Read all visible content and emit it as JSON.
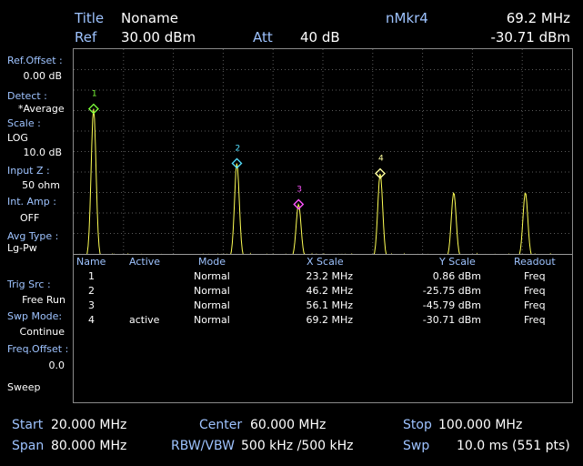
{
  "header": {
    "title_label": "Title",
    "title_value": "Noname",
    "ref_label": "Ref",
    "ref_value": "30.00 dBm",
    "att_label": "Att",
    "att_value": "40 dB",
    "marker_label": "nMkr4",
    "marker_freq": "69.2 MHz",
    "marker_level": "-30.71 dBm"
  },
  "sidebar": {
    "ref_offset_label": "Ref.Offset :",
    "ref_offset_value": "0.00 dB",
    "detect_label": "Detect :",
    "detect_value": "*Average",
    "scale_label": "Scale :",
    "scale_mode": "LOG",
    "scale_value": "10.0 dB",
    "inputz_label": "Input Z :",
    "inputz_value": "50 ohm",
    "intamp_label": "Int. Amp :",
    "intamp_value": "OFF",
    "avgtype_label": "Avg Type :",
    "avgtype_value": "Lg-Pw",
    "trig_label": "Trig Src :",
    "trig_value": "Free Run",
    "swpmode_label": "Swp Mode:",
    "swpmode_value": "Continue",
    "freqoffset_label": "Freq.Offset :",
    "freqoffset_value": "0.0",
    "sweep_label": "Sweep"
  },
  "marker_table": {
    "headers": [
      "Name",
      "Active",
      "Mode",
      "X Scale",
      "Y Scale",
      "Readout"
    ],
    "rows": [
      {
        "name": "1",
        "active": "",
        "mode": "Normal",
        "x": "23.2 MHz",
        "y": "0.86 dBm",
        "readout": "Freq"
      },
      {
        "name": "2",
        "active": "",
        "mode": "Normal",
        "x": "46.2 MHz",
        "y": "-25.75 dBm",
        "readout": "Freq"
      },
      {
        "name": "3",
        "active": "",
        "mode": "Normal",
        "x": "56.1 MHz",
        "y": "-45.79 dBm",
        "readout": "Freq"
      },
      {
        "name": "4",
        "active": "active",
        "mode": "Normal",
        "x": "69.2 MHz",
        "y": "-30.71 dBm",
        "readout": "Freq"
      }
    ]
  },
  "footer": {
    "start_label": "Start",
    "start_value": "20.000 MHz",
    "span_label": "Span",
    "span_value": "80.000 MHz",
    "center_label": "Center",
    "center_value": "60.000 MHz",
    "rbw_label": "RBW/VBW",
    "rbw_value": "500 kHz /500 kHz",
    "stop_label": "Stop",
    "stop_value": "100.000 MHz",
    "swp_label": "Swp",
    "swp_value": "10.0 ms  (551 pts)"
  },
  "colors": {
    "trace": "#ffff55",
    "marker1": "#7dff3a",
    "marker2": "#55e0ff",
    "marker3": "#ff55ff",
    "marker4": "#ffffa0",
    "grid": "#5a5a5a"
  },
  "chart_data": {
    "type": "line",
    "x_start_mhz": 20,
    "x_stop_mhz": 100,
    "ref_level_dbm": 30,
    "scale_db_per_div": 10,
    "divisions": 10,
    "noise_floor_dbm": -72,
    "peaks": [
      {
        "x": 23.2,
        "y": 0.86
      },
      {
        "x": 46.2,
        "y": -25.75
      },
      {
        "x": 56.1,
        "y": -45.79
      },
      {
        "x": 69.2,
        "y": -30.71
      },
      {
        "x": 81.0,
        "y": -40.0
      },
      {
        "x": 92.5,
        "y": -40.0
      }
    ],
    "markers": [
      {
        "label": "1",
        "x": 23.2,
        "y": 0.86
      },
      {
        "label": "2",
        "x": 46.2,
        "y": -25.75
      },
      {
        "label": "3",
        "x": 56.1,
        "y": -45.79
      },
      {
        "label": "4",
        "x": 69.2,
        "y": -30.71
      }
    ]
  }
}
